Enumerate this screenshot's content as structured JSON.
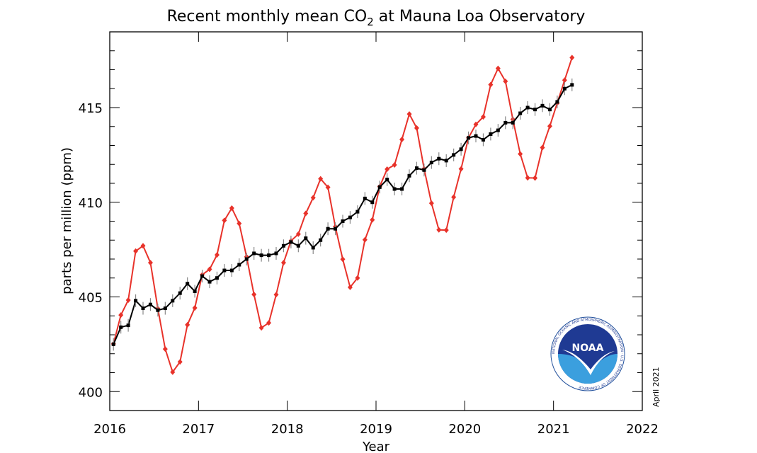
{
  "chart_data": {
    "type": "line",
    "title": "Recent monthly mean CO",
    "title_subscript": "2",
    "title_suffix": " at Mauna Loa Observatory",
    "xlabel": "Year",
    "ylabel": "parts per million (ppm)",
    "annotation": "April 2021",
    "logo_text": "NOAA",
    "logo_ring_text": "NATIONAL OCEANIC AND ATMOSPHERIC ADMINISTRATION · U.S. DEPARTMENT OF COMMERCE",
    "xlim": [
      2016,
      2022
    ],
    "ylim": [
      399,
      419
    ],
    "x_ticks": [
      "2016",
      "2017",
      "2018",
      "2019",
      "2020",
      "2021",
      "2022"
    ],
    "y_ticks": [
      "400",
      "405",
      "410",
      "415"
    ],
    "grid": false,
    "start": "2016-01",
    "series": [
      {
        "color": "#e8322a",
        "marker": "diamond",
        "values": [
          402.52,
          404.04,
          404.83,
          407.42,
          407.7,
          406.81,
          404.39,
          402.25,
          401.03,
          401.57,
          403.53,
          404.42,
          406.17,
          406.46,
          407.22,
          409.04,
          409.69,
          408.88,
          407.12,
          405.13,
          403.37,
          403.63,
          405.12,
          406.81,
          407.96,
          408.32,
          409.41,
          410.24,
          411.24,
          410.79,
          408.71,
          406.99,
          405.51,
          406.0,
          408.02,
          409.07,
          410.83,
          411.75,
          411.97,
          413.32,
          414.66,
          413.92,
          411.77,
          409.95,
          408.54,
          408.53,
          410.27,
          411.76,
          413.4,
          414.11,
          414.51,
          416.21,
          417.07,
          416.39,
          414.38,
          412.55,
          411.29,
          411.28,
          412.89,
          414.02,
          415.24,
          416.45,
          417.64
        ]
      },
      {
        "color": "#000000",
        "marker": "square",
        "error_bars": true,
        "values": [
          402.5,
          403.4,
          403.5,
          404.8,
          404.4,
          404.6,
          404.3,
          404.4,
          404.8,
          405.2,
          405.7,
          405.3,
          406.1,
          405.8,
          406.0,
          406.4,
          406.4,
          406.7,
          407.0,
          407.3,
          407.2,
          407.2,
          407.3,
          407.7,
          407.9,
          407.7,
          408.1,
          407.6,
          408.0,
          408.6,
          408.6,
          409.0,
          409.2,
          409.5,
          410.2,
          410.0,
          410.8,
          411.2,
          410.7,
          410.7,
          411.4,
          411.8,
          411.7,
          412.1,
          412.3,
          412.2,
          412.5,
          412.8,
          413.4,
          413.5,
          413.3,
          413.6,
          413.8,
          414.2,
          414.2,
          414.7,
          415.0,
          414.9,
          415.1,
          414.9,
          415.3,
          416.0,
          416.2
        ]
      }
    ]
  }
}
